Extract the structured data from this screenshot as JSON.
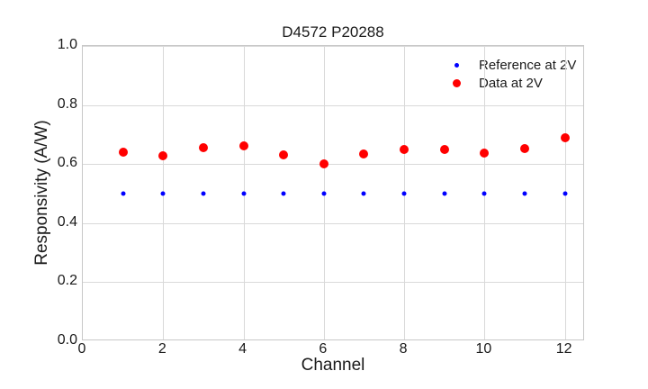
{
  "style": {
    "background": "#ffffff",
    "grid_color": "#d9d9d9",
    "spine_color": "#c8c8c8",
    "text_color": "#1a1a1a"
  },
  "chart_data": {
    "type": "scatter",
    "title": "D4572 P20288",
    "xlabel": "Channel",
    "ylabel": "Responsivity (A/W)",
    "xlim": [
      0,
      12.5
    ],
    "ylim": [
      0,
      1.0
    ],
    "grid": true,
    "legend_position": "upper right",
    "xticks": [
      {
        "value": 0,
        "label": "0"
      },
      {
        "value": 2,
        "label": "2"
      },
      {
        "value": 4,
        "label": "4"
      },
      {
        "value": 6,
        "label": "6"
      },
      {
        "value": 8,
        "label": "8"
      },
      {
        "value": 10,
        "label": "10"
      },
      {
        "value": 12,
        "label": "12"
      }
    ],
    "yticks": [
      {
        "value": 0.0,
        "label": "0.0"
      },
      {
        "value": 0.2,
        "label": "0.2"
      },
      {
        "value": 0.4,
        "label": "0.4"
      },
      {
        "value": 0.6,
        "label": "0.6"
      },
      {
        "value": 0.8,
        "label": "0.8"
      },
      {
        "value": 1.0,
        "label": "1.0"
      }
    ],
    "x": [
      1,
      2,
      3,
      4,
      5,
      6,
      7,
      8,
      9,
      10,
      11,
      12
    ],
    "series": [
      {
        "name": "Reference at 2V",
        "color": "#0000ff",
        "marker_size": 5,
        "legend_marker_size": 5,
        "values": [
          0.5,
          0.5,
          0.5,
          0.5,
          0.5,
          0.5,
          0.5,
          0.5,
          0.5,
          0.5,
          0.5,
          0.5
        ]
      },
      {
        "name": "Data at 2V",
        "color": "#ff0000",
        "marker_size": 10,
        "legend_marker_size": 9,
        "values": [
          0.639,
          0.628,
          0.656,
          0.661,
          0.63,
          0.602,
          0.635,
          0.649,
          0.648,
          0.638,
          0.652,
          0.69
        ]
      }
    ]
  }
}
